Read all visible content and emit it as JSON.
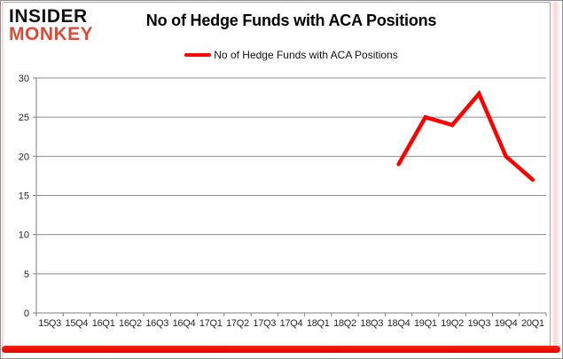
{
  "logo": {
    "line1": "INSIDER",
    "line2": "MONKEY"
  },
  "colors": {
    "series": "#FF0000",
    "logo_red": "#DC4B38",
    "logo_black": "#111111",
    "gridline": "#8C8C8C",
    "axis": "#7F7F7F",
    "tick_text": "#262626",
    "red_bar": "#EE0000"
  },
  "chart_data": {
    "type": "line",
    "title": "No of Hedge Funds with ACA Positions",
    "xlabel": "",
    "ylabel": "",
    "categories": [
      "15Q3",
      "15Q4",
      "16Q1",
      "16Q2",
      "16Q3",
      "16Q4",
      "17Q1",
      "17Q2",
      "17Q3",
      "17Q4",
      "18Q1",
      "18Q2",
      "18Q3",
      "18Q4",
      "19Q1",
      "19Q2",
      "19Q3",
      "19Q4",
      "20Q1"
    ],
    "series": [
      {
        "name": "No of Hedge Funds with ACA Positions",
        "color": "#FF0000",
        "values": [
          null,
          null,
          null,
          null,
          null,
          null,
          null,
          null,
          null,
          null,
          null,
          null,
          null,
          19,
          25,
          24,
          28,
          20,
          17
        ]
      }
    ],
    "ylim": [
      0,
      30
    ],
    "yticks": [
      0,
      5,
      10,
      15,
      20,
      25,
      30
    ],
    "grid": "horizontal",
    "legend_position": "top-center"
  }
}
